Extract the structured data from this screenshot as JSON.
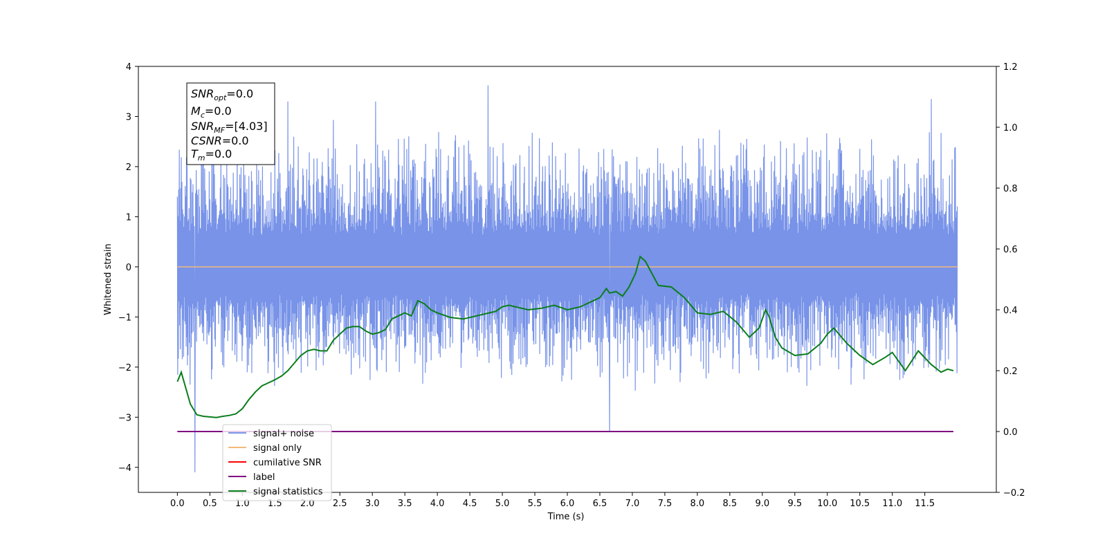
{
  "chart_data": {
    "type": "line",
    "xlabel": "Time (s)",
    "ylabel": "Whitened strain",
    "xlim": [
      -0.6,
      12.6
    ],
    "ylim": [
      -4.5,
      4
    ],
    "y2lim": [
      -0.2,
      1.2
    ],
    "x_ticks": [
      0.0,
      0.5,
      1.0,
      1.5,
      2.0,
      2.5,
      3.0,
      3.5,
      4.0,
      4.5,
      5.0,
      5.5,
      6.0,
      6.5,
      7.0,
      7.5,
      8.0,
      8.5,
      9.0,
      9.5,
      10.0,
      10.5,
      11.0,
      11.5
    ],
    "x_tick_labels": [
      "0.0",
      "0.5",
      "1.0",
      "1.5",
      "2.0",
      "2.5",
      "3.0",
      "3.5",
      "4.0",
      "4.5",
      "5.0",
      "5.5",
      "6.0",
      "6.5",
      "7.0",
      "7.5",
      "8.0",
      "8.5",
      "9.0",
      "9.5",
      "10.0",
      "10.5",
      "11.0",
      "11.5"
    ],
    "y_ticks": [
      -4,
      -3,
      -2,
      -1,
      0,
      1,
      2,
      3,
      4
    ],
    "y_tick_labels": [
      "−4",
      "−3",
      "−2",
      "−1",
      "0",
      "1",
      "2",
      "3",
      "4"
    ],
    "y2_ticks": [
      -0.2,
      0.0,
      0.2,
      0.4,
      0.6,
      0.8,
      1.0,
      1.2
    ],
    "y2_tick_labels": [
      "−0.2",
      "0.0",
      "0.2",
      "0.4",
      "0.6",
      "0.8",
      "1.0",
      "1.2"
    ],
    "grid": false,
    "legend_position": "lower-left",
    "noise": {
      "x_range": [
        0.0,
        12.0
      ],
      "typical_min": -1.9,
      "typical_max": 2.2,
      "peaks": [
        [
          0.27,
          -4.1
        ],
        [
          4.78,
          3.62
        ],
        [
          6.65,
          -3.3
        ],
        [
          11.6,
          3.35
        ],
        [
          1.7,
          3.3
        ],
        [
          3.05,
          3.3
        ]
      ]
    },
    "series": [
      {
        "name": "signal+ noise",
        "color": "#7893e8",
        "axis": "left"
      },
      {
        "name": "signal only",
        "color": "#f5b97a",
        "axis": "left",
        "x": [
          0.0,
          12.0
        ],
        "y": [
          0.0,
          0.0
        ]
      },
      {
        "name": "cumilative SNR",
        "color": "#ff0000",
        "axis": "left"
      },
      {
        "name": "label",
        "color": "#800080",
        "axis": "right",
        "x": [
          0.0,
          11.94
        ],
        "y": [
          0.0,
          0.0
        ]
      },
      {
        "name": "signal statistics",
        "color": "#0a7d1a",
        "axis": "right",
        "x": [
          0.0,
          0.06,
          0.12,
          0.2,
          0.3,
          0.4,
          0.5,
          0.6,
          0.7,
          0.8,
          0.9,
          1.0,
          1.1,
          1.2,
          1.3,
          1.4,
          1.5,
          1.6,
          1.7,
          1.8,
          1.9,
          2.0,
          2.1,
          2.2,
          2.3,
          2.4,
          2.5,
          2.6,
          2.7,
          2.8,
          2.9,
          3.0,
          3.1,
          3.2,
          3.3,
          3.4,
          3.5,
          3.6,
          3.7,
          3.8,
          3.9,
          4.0,
          4.2,
          4.4,
          4.6,
          4.8,
          4.9,
          5.0,
          5.1,
          5.2,
          5.4,
          5.6,
          5.8,
          6.0,
          6.2,
          6.4,
          6.5,
          6.6,
          6.65,
          6.75,
          6.85,
          6.95,
          7.05,
          7.12,
          7.2,
          7.3,
          7.4,
          7.6,
          7.8,
          8.0,
          8.2,
          8.4,
          8.6,
          8.8,
          8.95,
          9.05,
          9.1,
          9.2,
          9.3,
          9.5,
          9.7,
          9.9,
          10.0,
          10.1,
          10.3,
          10.5,
          10.7,
          10.9,
          11.0,
          11.2,
          11.4,
          11.6,
          11.75,
          11.85,
          11.94
        ],
        "y": [
          0.164,
          0.195,
          0.15,
          0.09,
          0.055,
          0.05,
          0.048,
          0.046,
          0.05,
          0.053,
          0.058,
          0.075,
          0.105,
          0.13,
          0.15,
          0.16,
          0.17,
          0.182,
          0.2,
          0.225,
          0.25,
          0.265,
          0.27,
          0.265,
          0.265,
          0.3,
          0.32,
          0.34,
          0.345,
          0.345,
          0.33,
          0.32,
          0.325,
          0.335,
          0.37,
          0.38,
          0.39,
          0.38,
          0.43,
          0.42,
          0.4,
          0.39,
          0.375,
          0.37,
          0.38,
          0.39,
          0.395,
          0.41,
          0.415,
          0.41,
          0.4,
          0.405,
          0.415,
          0.4,
          0.41,
          0.43,
          0.44,
          0.47,
          0.455,
          0.46,
          0.445,
          0.475,
          0.52,
          0.575,
          0.56,
          0.52,
          0.48,
          0.475,
          0.44,
          0.39,
          0.385,
          0.395,
          0.36,
          0.31,
          0.34,
          0.4,
          0.38,
          0.31,
          0.275,
          0.25,
          0.255,
          0.29,
          0.32,
          0.34,
          0.29,
          0.25,
          0.22,
          0.245,
          0.26,
          0.2,
          0.265,
          0.22,
          0.195,
          0.205,
          0.2
        ]
      }
    ],
    "annotation_lines": [
      "=0.0",
      "=0.0",
      "=[4.03]",
      "=0.0",
      "=0.0"
    ],
    "annotation_symbols": [
      {
        "main": "SNR",
        "sub": "opt"
      },
      {
        "main": "M",
        "sub": "c"
      },
      {
        "main": "SNR",
        "sub": "MF"
      },
      {
        "main": "CSNR",
        "sub": ""
      },
      {
        "main": "T",
        "sub": "m"
      }
    ]
  }
}
